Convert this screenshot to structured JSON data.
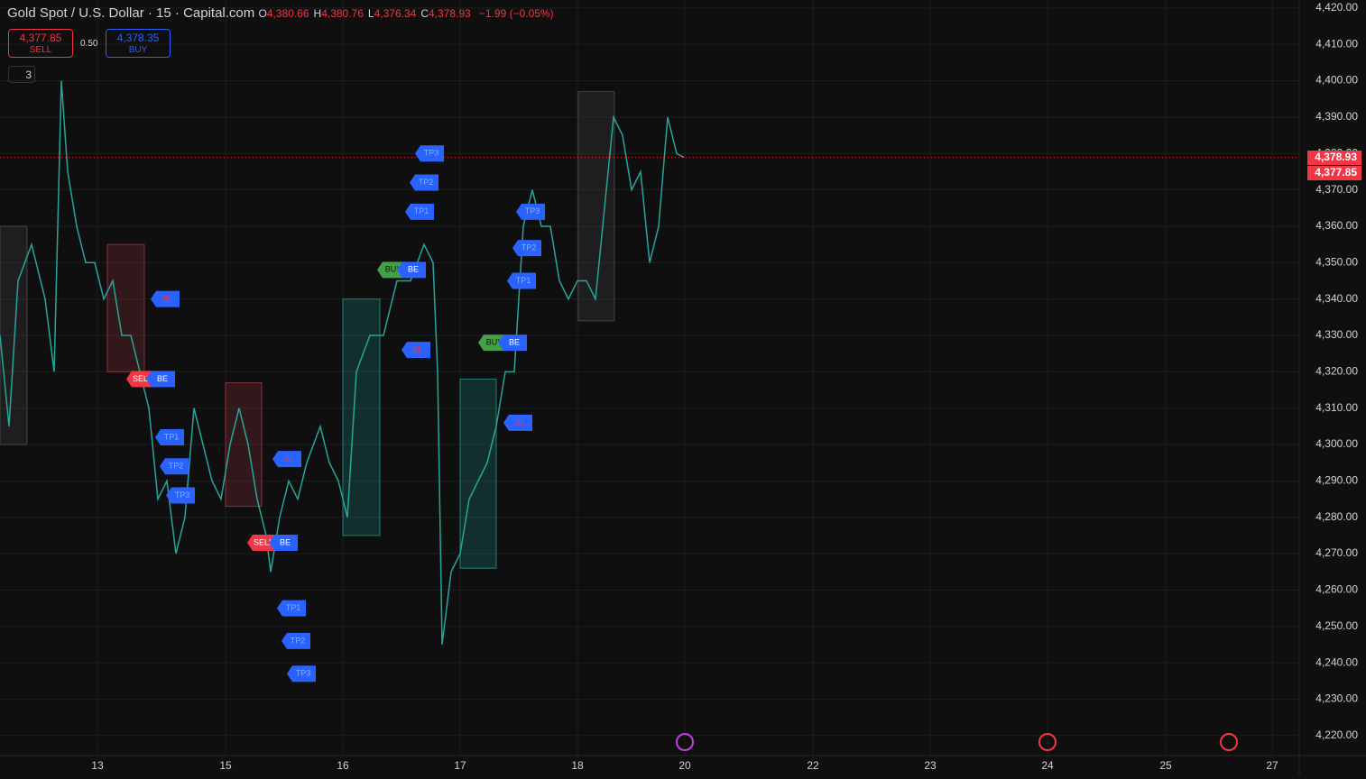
{
  "header": {
    "symbol": "Gold Spot / U.S. Dollar · 15 · Capital.com",
    "ohlc": [
      {
        "key": "O",
        "value": "4,380.66"
      },
      {
        "key": "H",
        "value": "4,380.76"
      },
      {
        "key": "L",
        "value": "4,376.34"
      },
      {
        "key": "C",
        "value": "4,378.93"
      }
    ],
    "change": "−1.99 (−0.05%)",
    "sell": {
      "price": "4,377.85",
      "label": "SELL"
    },
    "spread": "0.50",
    "buy": {
      "price": "4,378.35",
      "label": "BUY"
    },
    "indicators": "3"
  },
  "chart_data": {
    "type": "line",
    "color": "#26a69a",
    "x": [
      0,
      10,
      20,
      35,
      50,
      60,
      68,
      75,
      85,
      95,
      105,
      115,
      125,
      135,
      145,
      155,
      165,
      175,
      185,
      195,
      205,
      215,
      225,
      235,
      245,
      255,
      265,
      275,
      285,
      295,
      300,
      310,
      320,
      330,
      340,
      355,
      365,
      375,
      385,
      395,
      410,
      425,
      440,
      455,
      470,
      480,
      485,
      490,
      500,
      510,
      520,
      530,
      540,
      550,
      560,
      570,
      580,
      590,
      600,
      610,
      620,
      630,
      640,
      650,
      660,
      670,
      680,
      690,
      700,
      710,
      720,
      730,
      740,
      750,
      758
    ],
    "values": [
      4330,
      4305,
      4345,
      4355,
      4340,
      4320,
      4400,
      4375,
      4360,
      4350,
      4350,
      4340,
      4345,
      4330,
      4330,
      4320,
      4310,
      4285,
      4290,
      4270,
      4280,
      4310,
      4300,
      4290,
      4285,
      4300,
      4310,
      4300,
      4285,
      4275,
      4265,
      4280,
      4290,
      4285,
      4295,
      4305,
      4295,
      4290,
      4280,
      4320,
      4330,
      4330,
      4345,
      4345,
      4355,
      4350,
      4320,
      4245,
      4265,
      4270,
      4285,
      4290,
      4295,
      4305,
      4320,
      4320,
      4360,
      4370,
      4360,
      4360,
      4345,
      4340,
      4345,
      4345,
      4340,
      4365,
      4390,
      4385,
      4370,
      4375,
      4350,
      4360,
      4390,
      4380,
      4378.93
    ],
    "xlim": [
      0,
      1440
    ],
    "xticks": [
      {
        "value": 108,
        "label": "13"
      },
      {
        "value": 250,
        "label": "15"
      },
      {
        "value": 380,
        "label": "16"
      },
      {
        "value": 510,
        "label": "17"
      },
      {
        "value": 640,
        "label": "18"
      },
      {
        "value": 759,
        "label": "20"
      },
      {
        "value": 901,
        "label": "22"
      },
      {
        "value": 1031,
        "label": "23"
      },
      {
        "value": 1161,
        "label": "24"
      },
      {
        "value": 1292,
        "label": "25"
      },
      {
        "value": 1410,
        "label": "27"
      }
    ],
    "ylim": [
      4214.5,
      4422.2
    ],
    "yticks": [
      {
        "value": 4220,
        "label": "4,220.00"
      },
      {
        "value": 4230,
        "label": "4,230.00"
      },
      {
        "value": 4240,
        "label": "4,240.00"
      },
      {
        "value": 4250,
        "label": "4,250.00"
      },
      {
        "value": 4260,
        "label": "4,260.00"
      },
      {
        "value": 4270,
        "label": "4,270.00"
      },
      {
        "value": 4280,
        "label": "4,280.00"
      },
      {
        "value": 4290,
        "label": "4,290.00"
      },
      {
        "value": 4300,
        "label": "4,300.00"
      },
      {
        "value": 4310,
        "label": "4,310.00"
      },
      {
        "value": 4320,
        "label": "4,320.00"
      },
      {
        "value": 4330,
        "label": "4,330.00"
      },
      {
        "value": 4340,
        "label": "4,340.00"
      },
      {
        "value": 4350,
        "label": "4,350.00"
      },
      {
        "value": 4360,
        "label": "4,360.00"
      },
      {
        "value": 4370,
        "label": "4,370.00"
      },
      {
        "value": 4380,
        "label": "4,380.00"
      },
      {
        "value": 4390,
        "label": "4,390.00"
      },
      {
        "value": 4400,
        "label": "4,400.00"
      },
      {
        "value": 4410,
        "label": "4,410.00"
      },
      {
        "value": 4420,
        "label": "4,420.00"
      }
    ],
    "grid": true,
    "price_labels": [
      {
        "value": 4378.93,
        "label": "4,378.93"
      },
      {
        "value": 4377.85,
        "label": "4,377.85"
      }
    ],
    "zones": [
      {
        "x": [
          0,
          30
        ],
        "y": [
          4300,
          4360
        ],
        "color": "#555555"
      },
      {
        "x": [
          119,
          160
        ],
        "y": [
          4320,
          4355
        ],
        "color": "#b23a48"
      },
      {
        "x": [
          250,
          290
        ],
        "y": [
          4283,
          4317
        ],
        "color": "#b23a48"
      },
      {
        "x": [
          380,
          421
        ],
        "y": [
          4275,
          4340
        ],
        "color": "#26a69a"
      },
      {
        "x": [
          510,
          550
        ],
        "y": [
          4266,
          4318
        ],
        "color": "#26a69a"
      },
      {
        "x": [
          641,
          681
        ],
        "y": [
          4334,
          4397
        ],
        "color": "#555555"
      }
    ],
    "signals": [
      {
        "text": "SL",
        "x": 185,
        "y": 4340
      },
      {
        "text": "SELL",
        "x": 158,
        "y": 4318
      },
      {
        "text": "BE",
        "x": 180,
        "y": 4318
      },
      {
        "text": "TP1",
        "x": 190,
        "y": 4302
      },
      {
        "text": "TP2",
        "x": 195,
        "y": 4294
      },
      {
        "text": "TP3",
        "x": 202,
        "y": 4286
      },
      {
        "text": "SL",
        "x": 320,
        "y": 4296
      },
      {
        "text": "SELL",
        "x": 292,
        "y": 4273
      },
      {
        "text": "BE",
        "x": 316,
        "y": 4273
      },
      {
        "text": "TP1",
        "x": 325,
        "y": 4255
      },
      {
        "text": "TP2",
        "x": 330,
        "y": 4246
      },
      {
        "text": "TP3",
        "x": 336,
        "y": 4237
      },
      {
        "text": "TP3",
        "x": 478,
        "y": 4380
      },
      {
        "text": "TP2",
        "x": 472,
        "y": 4372
      },
      {
        "text": "TP1",
        "x": 467,
        "y": 4364
      },
      {
        "text": "BUY",
        "x": 436,
        "y": 4348
      },
      {
        "text": "BE",
        "x": 458,
        "y": 4348
      },
      {
        "text": "SL",
        "x": 463,
        "y": 4326
      },
      {
        "text": "TP3",
        "x": 590,
        "y": 4364
      },
      {
        "text": "TP2",
        "x": 586,
        "y": 4354
      },
      {
        "text": "TP1",
        "x": 580,
        "y": 4345
      },
      {
        "text": "BUY",
        "x": 548,
        "y": 4328
      },
      {
        "text": "BE",
        "x": 570,
        "y": 4328
      },
      {
        "text": "SL",
        "x": 576,
        "y": 4306
      }
    ]
  }
}
